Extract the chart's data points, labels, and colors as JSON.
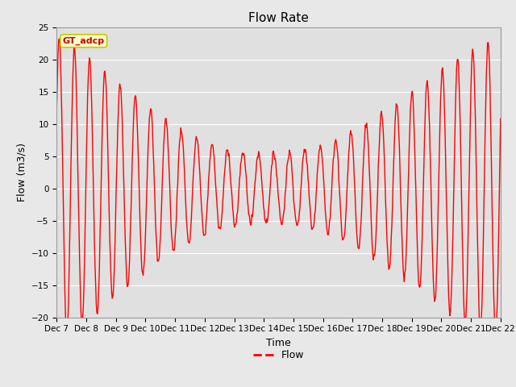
{
  "title": "Flow Rate",
  "xlabel": "Time",
  "ylabel": "Flow (m3/s)",
  "ylim": [
    -20,
    25
  ],
  "background_color": "#e8e8e8",
  "plot_bg_color": "#e0e0e0",
  "line_color": "#ff0000",
  "line_width": 1.0,
  "legend_label": "Flow",
  "annotation_text": "GT_adcp",
  "annotation_bg": "#ffffcc",
  "annotation_border": "#c8c800",
  "grid_color": "#ffffff",
  "title_fontsize": 11,
  "label_fontsize": 9,
  "tick_fontsize": 7.5
}
